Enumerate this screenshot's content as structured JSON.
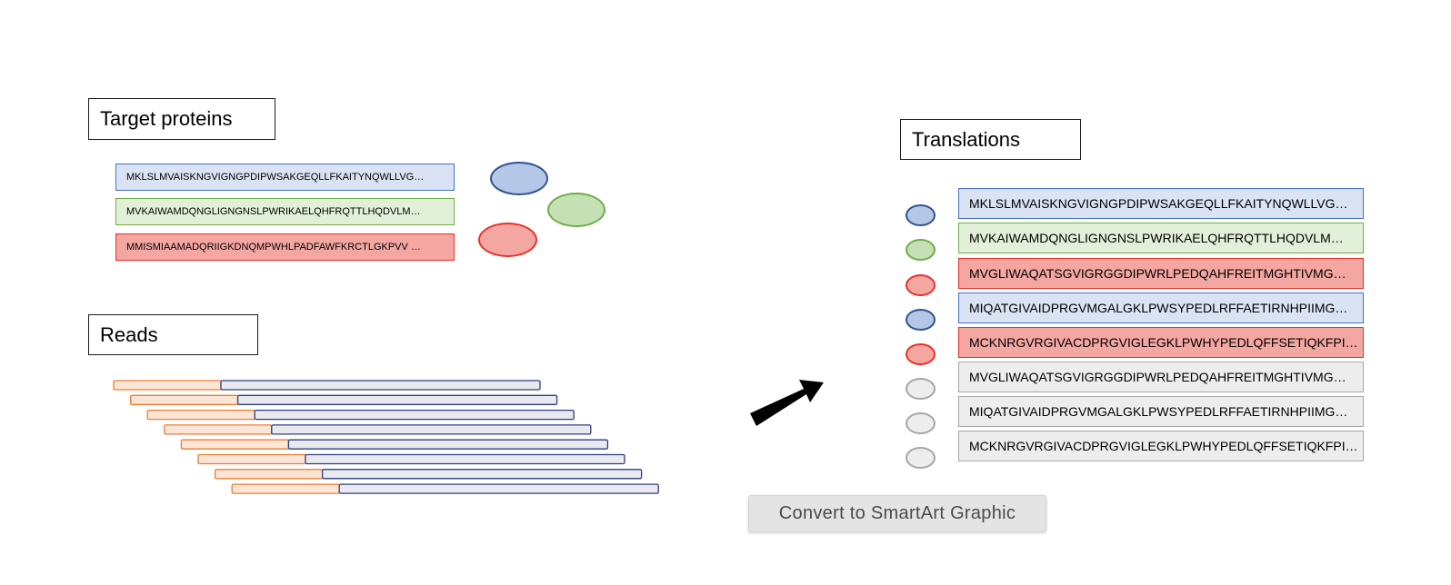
{
  "target_proteins": {
    "title": "Target proteins",
    "sequences": [
      {
        "text": "MKLSLMVAISKNGVIGNGPDIPWSAKGEQLLFKAITYNQWLLVG…",
        "color": "blue"
      },
      {
        "text": "MVKAIWAMDQNGLIGNGNSLPWRIKAELQHFRQTTLHQDVLM…",
        "color": "green"
      },
      {
        "text": "MMISMIAAMADQRIIGKDNQMPWHLPADFAWFKRCTLGKPVV …",
        "color": "red"
      }
    ]
  },
  "reads": {
    "title": "Reads",
    "count": 8
  },
  "translations": {
    "title": "Translations",
    "sequences": [
      {
        "text": "MKLSLMVAISKNGVIGNGPDIPWSAKGEQLLFKAITYNQWLLVG…",
        "color": "blue"
      },
      {
        "text": "MVKAIWAMDQNGLIGNGNSLPWRIKAELQHFRQTTLHQDVLM…",
        "color": "green"
      },
      {
        "text": "MVGLIWAQATSGVIGRGGDIPWRLPEDQAHFREITMGHTIVMG…",
        "color": "red"
      },
      {
        "text": "MIQATGIVAIDPRGVMGALGKLPWSYPEDLRFFAETIRNHPIIMG…",
        "color": "blue"
      },
      {
        "text": "MCKNRGVRGIVACDPRGVIGLEGKLPWHYPEDLQFFSETIQKFPI…",
        "color": "red"
      },
      {
        "text": "MVGLIWAQATSGVIGRGGDIPWRLPEDQAHFREITMGHTIVMG…",
        "color": "gray"
      },
      {
        "text": "MIQATGIVAIDPRGVMGALGKLPWSYPEDLRFFAETIRNHPIIMG…",
        "color": "gray"
      },
      {
        "text": "MCKNRGVRGIVACDPRGVIGLEGKLPWHYPEDLQFFSETIQKFPI…",
        "color": "gray"
      }
    ]
  },
  "smartart_button": {
    "label": "Convert to SmartArt Graphic"
  },
  "palette": {
    "blue": {
      "fill": "#dae3f3",
      "border": "#4472c4",
      "oval_fill": "#b4c7e7",
      "oval_border": "#2f528f"
    },
    "green": {
      "fill": "#e2f0d9",
      "border": "#70ad47",
      "oval_fill": "#c5e0b4",
      "oval_border": "#70ad47"
    },
    "red": {
      "fill": "#f4a6a1",
      "border": "#e8312a",
      "oval_fill": "#f4a6a1",
      "oval_border": "#e8312a"
    },
    "gray": {
      "fill": "#ededed",
      "border": "#a6a6a6",
      "oval_fill": "#ededed",
      "oval_border": "#a6a6a6"
    },
    "read_prefix_fill": "#fbe5d6",
    "read_prefix_border": "#ed7d31",
    "read_body_fill": "#e8eaf0",
    "read_body_border": "#2f3f7f",
    "arrow": "#000000"
  }
}
